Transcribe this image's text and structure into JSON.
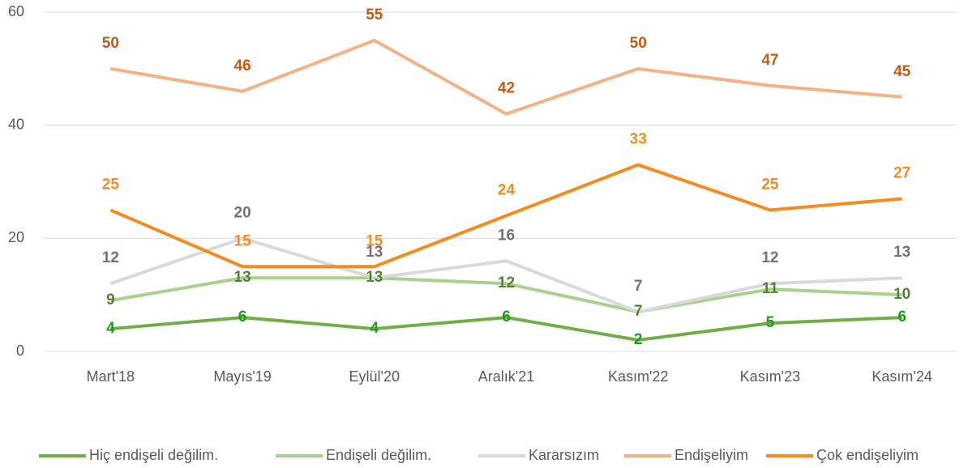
{
  "chart_data": {
    "type": "line",
    "categories": [
      "Mart'18",
      "Mayıs'19",
      "Eylül'20",
      "Aralık'21",
      "Kasım'22",
      "Kasım'23",
      "Kasım'24"
    ],
    "series": [
      {
        "name": "Hiç endişeli değilim.",
        "color": "#70ad47",
        "label_color": "#1f9a1f",
        "values": [
          4,
          6,
          4,
          6,
          2,
          5,
          6
        ]
      },
      {
        "name": "Endişeli değilim.",
        "color": "#a9d18e",
        "label_color": "#548235",
        "values": [
          9,
          13,
          13,
          12,
          7,
          11,
          10
        ]
      },
      {
        "name": "Kararsızım",
        "color": "#d9d9d9",
        "label_color": "#767171",
        "values": [
          12,
          20,
          13,
          16,
          7,
          12,
          13
        ]
      },
      {
        "name": "Endişeliyim",
        "color": "#f4b183",
        "label_color": "#c55a11",
        "values": [
          50,
          46,
          55,
          42,
          50,
          47,
          45
        ]
      },
      {
        "name": "Çok endişeliyim",
        "color": "#f58a1f",
        "label_color": "#f58a1f",
        "values": [
          25,
          15,
          15,
          24,
          33,
          25,
          27
        ]
      }
    ],
    "ylim": [
      0,
      60
    ],
    "yticks": [
      0,
      20,
      40,
      60
    ],
    "grid": true,
    "legend": "bottom"
  }
}
